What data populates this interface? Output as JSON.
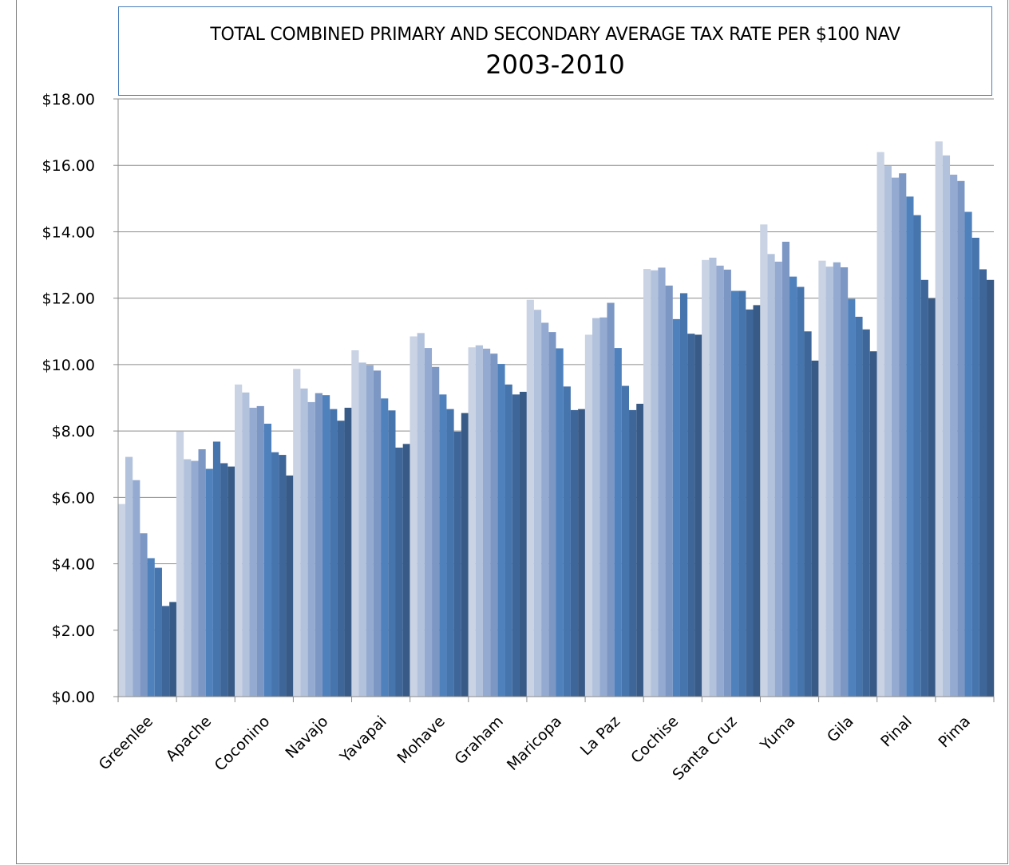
{
  "chart_data": {
    "type": "bar",
    "title": "TOTAL COMBINED PRIMARY AND SECONDARY AVERAGE TAX RATE PER $100 NAV",
    "subtitle": "2003-2010",
    "xlabel": "",
    "ylabel": "",
    "ylim": [
      0,
      18
    ],
    "yticks": [
      "$0.00",
      "$2.00",
      "$4.00",
      "$6.00",
      "$8.00",
      "$10.00",
      "$12.00",
      "$14.00",
      "$16.00",
      "$18.00"
    ],
    "grid": true,
    "legend": "none",
    "categories": [
      "Greenlee",
      "Apache",
      "Coconino",
      "Navajo",
      "Yavapai",
      "Mohave",
      "Graham",
      "Maricopa",
      "La Paz",
      "Cochise",
      "Santa Cruz",
      "Yuma",
      "Gila",
      "Pinal",
      "Pima"
    ],
    "series_colors": [
      "#c9d3e4",
      "#b3c2dc",
      "#94aad0",
      "#7d97c5",
      "#4f81bd",
      "#4674ad",
      "#3e6699",
      "#375a87"
    ],
    "series": [
      {
        "values": [
          5.8,
          7.98,
          9.4,
          9.87,
          10.43,
          10.85,
          10.52,
          11.95,
          10.9,
          12.88,
          13.15,
          14.22,
          13.13,
          16.4,
          16.72
        ]
      },
      {
        "values": [
          7.22,
          7.15,
          9.16,
          9.28,
          10.06,
          10.95,
          10.58,
          11.65,
          11.4,
          12.84,
          13.22,
          13.33,
          12.95,
          15.98,
          16.3
        ]
      },
      {
        "values": [
          6.52,
          7.1,
          8.7,
          8.87,
          9.98,
          10.5,
          10.48,
          11.26,
          11.42,
          12.92,
          12.98,
          13.1,
          13.08,
          15.63,
          15.72
        ]
      },
      {
        "values": [
          4.92,
          7.45,
          8.75,
          9.14,
          9.82,
          9.93,
          10.33,
          10.98,
          11.86,
          12.38,
          12.86,
          13.7,
          12.93,
          15.76,
          15.53
        ]
      },
      {
        "values": [
          4.17,
          6.86,
          8.22,
          9.08,
          8.98,
          9.1,
          10.02,
          10.49,
          10.5,
          11.37,
          12.22,
          12.65,
          11.98,
          15.06,
          14.6
        ]
      },
      {
        "values": [
          3.88,
          7.68,
          7.36,
          8.66,
          8.62,
          8.66,
          9.4,
          9.34,
          9.36,
          12.15,
          12.22,
          12.34,
          11.44,
          14.5,
          13.82
        ]
      },
      {
        "values": [
          2.73,
          7.03,
          7.28,
          8.31,
          7.5,
          7.98,
          9.1,
          8.63,
          8.63,
          10.93,
          11.66,
          11.0,
          11.06,
          12.55,
          12.87
        ]
      },
      {
        "values": [
          2.85,
          6.93,
          6.66,
          8.7,
          7.61,
          8.54,
          9.18,
          8.66,
          8.82,
          10.9,
          11.79,
          10.12,
          10.4,
          11.99,
          12.55
        ]
      }
    ]
  }
}
